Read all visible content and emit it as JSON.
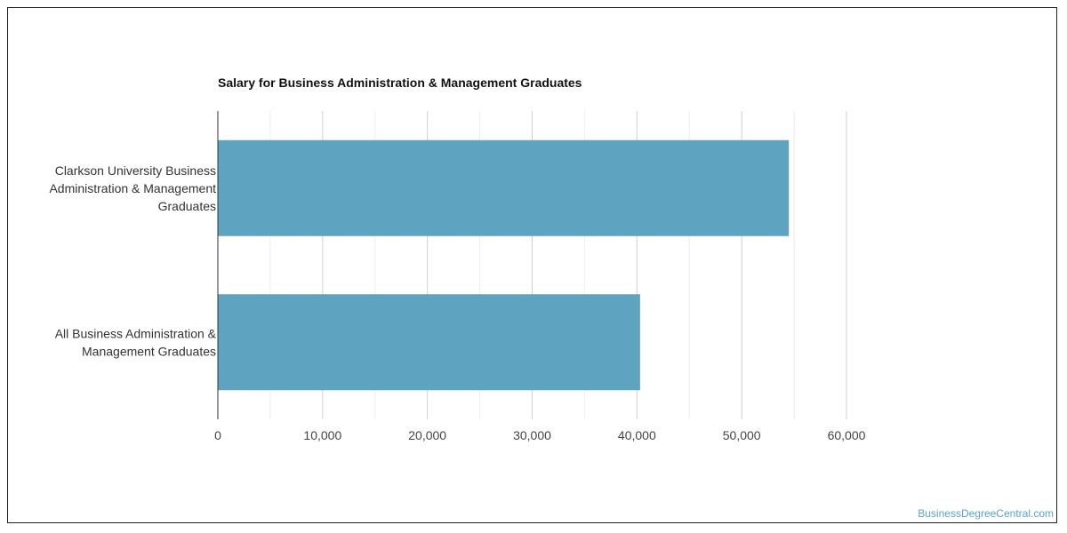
{
  "chart_data": {
    "type": "bar",
    "orientation": "horizontal",
    "title": "Salary for Business Administration & Management Graduates",
    "categories": [
      [
        "Clarkson University Business",
        "Administration & Management",
        "Graduates"
      ],
      [
        "All Business Administration &",
        "Management Graduates"
      ]
    ],
    "values": [
      54500,
      40300
    ],
    "xlim": [
      0,
      60000
    ],
    "xticks": [
      0,
      10000,
      20000,
      30000,
      40000,
      50000,
      60000
    ],
    "xtick_labels": [
      "0",
      "10,000",
      "20,000",
      "30,000",
      "40,000",
      "50,000",
      "60,000"
    ],
    "xlabel": "",
    "ylabel": "",
    "grid": true,
    "bar_color": "#5ea3bf"
  },
  "watermark": "BusinessDegreeCentral.com"
}
